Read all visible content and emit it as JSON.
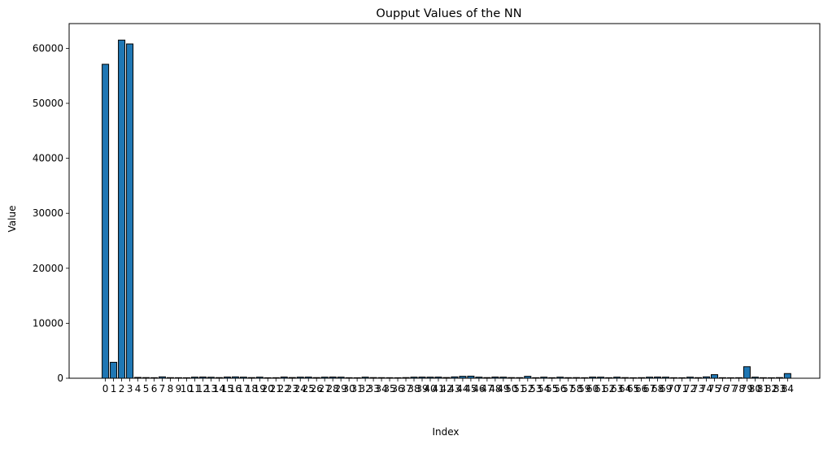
{
  "chart_data": {
    "type": "bar",
    "title": "Oupput Values of the NN",
    "xlabel": "Index",
    "ylabel": "Value",
    "ylim": [
      0,
      64500
    ],
    "yticks": [
      0,
      10000,
      20000,
      30000,
      40000,
      50000,
      60000
    ],
    "grid": false,
    "colors": {
      "bar_fill": "#1f77b4",
      "bar_edge": "#000000"
    },
    "categories": [
      "0",
      "1",
      "2",
      "3",
      "4",
      "5",
      "6",
      "7",
      "8",
      "9",
      "10",
      "11",
      "12",
      "13",
      "14",
      "15",
      "16",
      "17",
      "18",
      "19",
      "20",
      "21",
      "22",
      "23",
      "24",
      "25",
      "26",
      "27",
      "28",
      "29",
      "30",
      "31",
      "32",
      "33",
      "34",
      "35",
      "36",
      "37",
      "38",
      "39",
      "40",
      "41",
      "42",
      "43",
      "44",
      "45",
      "46",
      "47",
      "48",
      "49",
      "50",
      "51",
      "52",
      "53",
      "54",
      "55",
      "56",
      "57",
      "58",
      "59",
      "60",
      "61",
      "62",
      "63",
      "64",
      "65",
      "66",
      "67",
      "68",
      "69",
      "70",
      "71",
      "72",
      "73",
      "74",
      "75",
      "76",
      "77",
      "78",
      "79",
      "80",
      "81",
      "82",
      "83",
      "84"
    ],
    "values": [
      57100,
      2900,
      61500,
      60800,
      150,
      120,
      100,
      250,
      110,
      100,
      90,
      200,
      220,
      180,
      120,
      220,
      250,
      200,
      120,
      200,
      90,
      100,
      220,
      130,
      200,
      210,
      120,
      200,
      220,
      200,
      100,
      90,
      200,
      120,
      110,
      100,
      90,
      120,
      200,
      210,
      200,
      210,
      130,
      250,
      350,
      380,
      200,
      120,
      220,
      200,
      120,
      110,
      350,
      100,
      200,
      100,
      200,
      110,
      120,
      100,
      210,
      200,
      100,
      200,
      120,
      90,
      110,
      200,
      220,
      200,
      100,
      90,
      200,
      110,
      250,
      650,
      100,
      90,
      100,
      2100,
      200,
      100,
      90,
      120,
      850
    ]
  }
}
